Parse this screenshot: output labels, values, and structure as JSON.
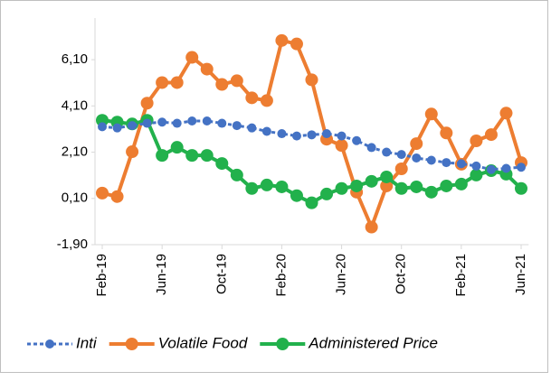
{
  "chart_data": {
    "type": "line",
    "categories": [
      "Feb-19",
      null,
      null,
      null,
      "Jun-19",
      null,
      null,
      null,
      "Oct-19",
      null,
      null,
      null,
      "Feb-20",
      null,
      null,
      null,
      "Jun-20",
      null,
      null,
      null,
      "Oct-20",
      null,
      null,
      null,
      "Feb-21",
      null,
      null,
      null,
      "Jun-21"
    ],
    "series": [
      {
        "name": "Inti",
        "color": "#4472c4",
        "dashed": true,
        "values": [
          3.2,
          3.15,
          3.25,
          3.35,
          3.4,
          3.35,
          3.45,
          3.45,
          3.35,
          3.25,
          3.15,
          3.0,
          2.9,
          2.8,
          2.85,
          2.9,
          2.8,
          2.6,
          2.3,
          2.1,
          2.0,
          1.85,
          1.75,
          1.65,
          1.6,
          1.5,
          1.35,
          1.4,
          1.45
        ]
      },
      {
        "name": "Volatile Food",
        "color": "#ed7d31",
        "dashed": false,
        "values": [
          0.33,
          0.18,
          2.12,
          4.22,
          5.11,
          5.11,
          6.2,
          5.69,
          5.03,
          5.19,
          4.45,
          4.33,
          6.93,
          6.78,
          5.23,
          2.66,
          2.39,
          0.37,
          -1.14,
          0.64,
          1.38,
          2.47,
          3.75,
          2.93,
          1.58,
          2.59,
          2.86,
          3.79,
          1.65
        ]
      },
      {
        "name": "Administered Price",
        "color": "#22b14c",
        "dashed": false,
        "values": [
          3.48,
          3.4,
          3.32,
          3.48,
          1.96,
          2.31,
          1.96,
          1.96,
          1.61,
          1.11,
          0.53,
          0.68,
          0.6,
          0.22,
          -0.09,
          0.29,
          0.53,
          0.64,
          0.84,
          1.03,
          0.53,
          0.6,
          0.37,
          0.64,
          0.72,
          1.11,
          1.3,
          1.15,
          0.53
        ]
      }
    ],
    "ylim": [
      -1.9,
      7.9
    ],
    "yticks": [
      {
        "value": -1.9,
        "label": "-1,90"
      },
      {
        "value": 0.1,
        "label": "0,10"
      },
      {
        "value": 2.1,
        "label": "2,10"
      },
      {
        "value": 4.1,
        "label": "4,10"
      },
      {
        "value": 6.1,
        "label": "6,10"
      }
    ],
    "grid": false,
    "legend": "bottom"
  }
}
